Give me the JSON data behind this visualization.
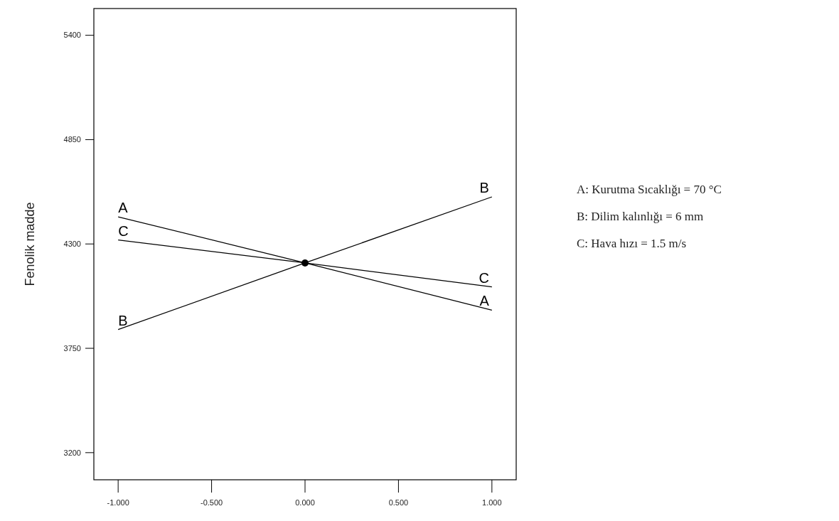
{
  "chart_data": {
    "type": "line",
    "ylabel": "Fenolik madde",
    "xlim": [
      -1.13,
      1.13
    ],
    "xticks": [
      {
        "value": -1,
        "label": "-1.000"
      },
      {
        "value": -0.5,
        "label": "-0.500"
      },
      {
        "value": 0,
        "label": "0.000"
      },
      {
        "value": 0.5,
        "label": "0.500"
      },
      {
        "value": 1,
        "label": "1.000"
      }
    ],
    "ylim": [
      3057,
      5541
    ],
    "yticks": [
      3200,
      3750,
      4300,
      4850,
      5400
    ],
    "grid": false,
    "series": [
      {
        "name": "A",
        "color": "#000000",
        "x": [
          -1,
          0,
          1
        ],
        "values": [
          4443,
          4200,
          3951
        ]
      },
      {
        "name": "B",
        "color": "#000000",
        "x": [
          -1,
          0,
          1
        ],
        "values": [
          3849,
          4200,
          4548
        ]
      },
      {
        "name": "C",
        "color": "#000000",
        "x": [
          -1,
          0,
          1
        ],
        "values": [
          4321,
          4200,
          4074
        ]
      },
      {
        "type": "scatter",
        "color": "#000000",
        "marker": "circle",
        "x": [
          0
        ],
        "values": [
          4200
        ]
      }
    ],
    "annotations": [
      "A: Kurutma Sıcaklığı = 70 °C",
      "B: Dilim kalınlığı = 6 mm",
      "C: Hava hızı = 1.5 m/s"
    ]
  }
}
